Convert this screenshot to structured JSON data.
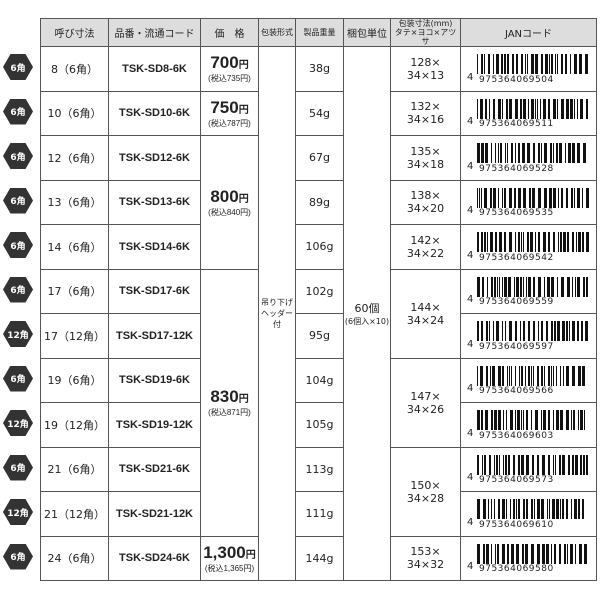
{
  "headers": [
    "呼び寸法",
    "品番・流通コード",
    "価　格",
    "包装形式",
    "製品重量",
    "梱包単位",
    "包装寸法(mm)\nタテ×ヨコ×アツサ",
    "JANコード"
  ],
  "packaging": "吊り下げ\nヘッダー付",
  "unit": {
    "main": "60個",
    "sub": "(6個入×10)"
  },
  "rows": [
    {
      "badge": "6角",
      "size": "8（6角）",
      "code": "TSK-SD8-6K",
      "weight": "38g",
      "jan": "975364069504"
    },
    {
      "badge": "6角",
      "size": "10（6角）",
      "code": "TSK-SD10-6K",
      "weight": "54g",
      "jan": "975364069511"
    },
    {
      "badge": "6角",
      "size": "12（6角）",
      "code": "TSK-SD12-6K",
      "weight": "67g",
      "jan": "975364069528"
    },
    {
      "badge": "6角",
      "size": "13（6角）",
      "code": "TSK-SD13-6K",
      "weight": "89g",
      "jan": "975364069535"
    },
    {
      "badge": "6角",
      "size": "14（6角）",
      "code": "TSK-SD14-6K",
      "weight": "106g",
      "jan": "975364069542"
    },
    {
      "badge": "6角",
      "size": "17（6角）",
      "code": "TSK-SD17-6K",
      "weight": "102g",
      "jan": "975364069559"
    },
    {
      "badge": "12角",
      "size": "17（12角）",
      "code": "TSK-SD17-12K",
      "weight": "95g",
      "jan": "975364069597"
    },
    {
      "badge": "6角",
      "size": "19（6角）",
      "code": "TSK-SD19-6K",
      "weight": "104g",
      "jan": "975364069566"
    },
    {
      "badge": "12角",
      "size": "19（12角）",
      "code": "TSK-SD19-12K",
      "weight": "105g",
      "jan": "975364069603"
    },
    {
      "badge": "6角",
      "size": "21（6角）",
      "code": "TSK-SD21-6K",
      "weight": "113g",
      "jan": "975364069573"
    },
    {
      "badge": "12角",
      "size": "21（12角）",
      "code": "TSK-SD21-12K",
      "weight": "111g",
      "jan": "975364069610"
    },
    {
      "badge": "6角",
      "size": "24（6角）",
      "code": "TSK-SD24-6K",
      "weight": "144g",
      "jan": "975364069580"
    }
  ],
  "jan_prefix": "4",
  "prices": [
    {
      "rows": 1,
      "price": "700",
      "yen": "円",
      "tax": "(税込735円)"
    },
    {
      "rows": 1,
      "price": "750",
      "yen": "円",
      "tax": "(税込787円)"
    },
    {
      "rows": 3,
      "price": "800",
      "yen": "円",
      "tax": "(税込840円)"
    },
    {
      "rows": 6,
      "price": "830",
      "yen": "円",
      "tax": "(税込871円)"
    },
    {
      "rows": 1,
      "price": "1,300",
      "yen": "円",
      "tax": "(税込1,365円)"
    }
  ],
  "dimensions": [
    {
      "rows": 1,
      "line1": "128×",
      "line2": "34×13"
    },
    {
      "rows": 1,
      "line1": "132×",
      "line2": "34×16"
    },
    {
      "rows": 1,
      "line1": "135×",
      "line2": "34×18"
    },
    {
      "rows": 1,
      "line1": "138×",
      "line2": "34×20"
    },
    {
      "rows": 1,
      "line1": "142×",
      "line2": "34×22"
    },
    {
      "rows": 2,
      "line1": "144×",
      "line2": "34×24"
    },
    {
      "rows": 2,
      "line1": "147×",
      "line2": "34×26"
    },
    {
      "rows": 2,
      "line1": "150×",
      "line2": "34×28"
    },
    {
      "rows": 1,
      "line1": "153×",
      "line2": "34×32"
    }
  ]
}
